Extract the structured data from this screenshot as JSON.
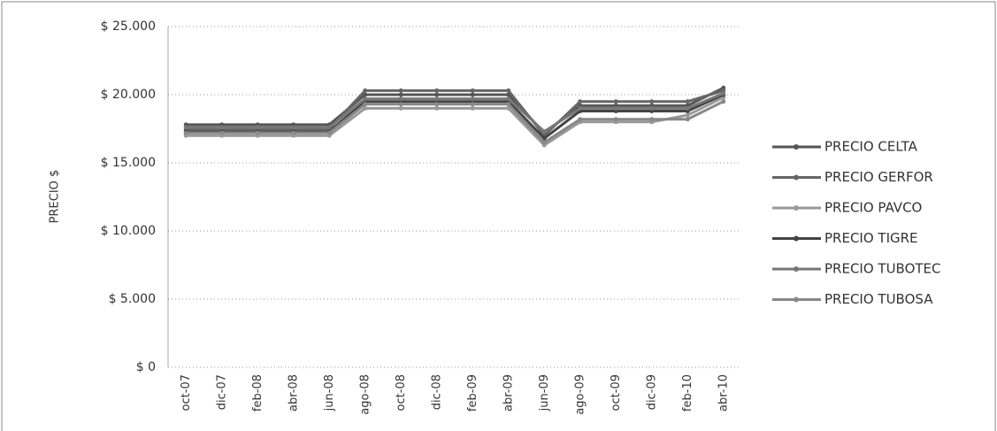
{
  "chart_data": {
    "type": "line",
    "y_label": "PRECIO $",
    "categories": [
      "oct-07",
      "dic-07",
      "feb-08",
      "abr-08",
      "jun-08",
      "ago-08",
      "oct-08",
      "dic-08",
      "feb-09",
      "abr-09",
      "jun-09",
      "ago-09",
      "oct-09",
      "dic-09",
      "feb-10",
      "abr-10"
    ],
    "series": [
      {
        "name": "PRECIO CELTA",
        "color": "#555555",
        "values": [
          17800,
          17800,
          17800,
          17800,
          17800,
          20000,
          20000,
          20000,
          20000,
          20000,
          17200,
          19200,
          19200,
          19200,
          19200,
          20500
        ]
      },
      {
        "name": "PRECIO GERFOR",
        "color": "#666666",
        "values": [
          17500,
          17500,
          17500,
          17500,
          17500,
          20300,
          20300,
          20300,
          20300,
          20300,
          17000,
          19500,
          19500,
          19500,
          19500,
          20300
        ]
      },
      {
        "name": "PRECIO PAVCO",
        "color": "#999999",
        "values": [
          17000,
          17000,
          17000,
          17000,
          17000,
          19000,
          19000,
          19000,
          19000,
          19000,
          16300,
          18000,
          18000,
          18000,
          18500,
          19800
        ]
      },
      {
        "name": "PRECIO TIGRE",
        "color": "#444444",
        "values": [
          17300,
          17300,
          17300,
          17300,
          17300,
          19500,
          19500,
          19500,
          19500,
          19500,
          16800,
          18800,
          18800,
          18800,
          18800,
          20000
        ]
      },
      {
        "name": "PRECIO TUBOTEC",
        "color": "#777777",
        "values": [
          17600,
          17600,
          17600,
          17600,
          17600,
          19700,
          19700,
          19700,
          19700,
          19700,
          17300,
          19000,
          19000,
          19000,
          19000,
          20100
        ]
      },
      {
        "name": "PRECIO TUBOSA",
        "color": "#888888",
        "values": [
          17200,
          17200,
          17200,
          17200,
          17200,
          19300,
          19300,
          19300,
          19300,
          19300,
          16500,
          18200,
          18200,
          18200,
          18200,
          19500
        ]
      }
    ],
    "ylim": [
      0,
      25000
    ],
    "yticks": [
      {
        "value": 0,
        "label": "$ 0"
      },
      {
        "value": 5000,
        "label": "$ 5.000"
      },
      {
        "value": 10000,
        "label": "$ 10.000"
      },
      {
        "value": 15000,
        "label": "$ 15.000"
      },
      {
        "value": 20000,
        "label": "$ 20.000"
      },
      {
        "value": 25000,
        "label": "$ 25.000"
      }
    ],
    "grid": true,
    "legend": "right"
  }
}
